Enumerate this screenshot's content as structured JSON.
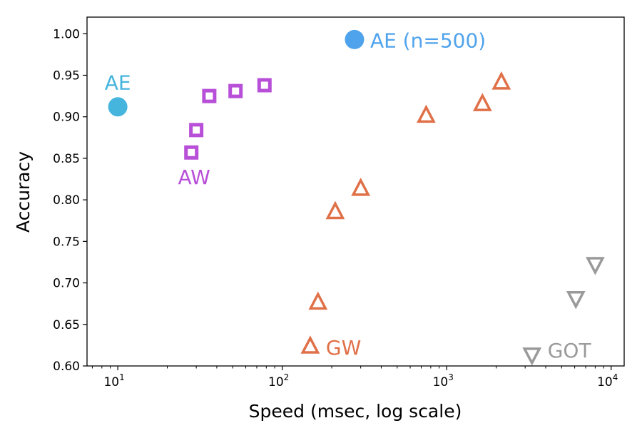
{
  "chart_data": {
    "type": "scatter",
    "title": "",
    "xlabel": "Speed (msec, log scale)",
    "ylabel": "Accuracy",
    "xscale": "log",
    "xlim": [
      6.5,
      12000
    ],
    "ylim": [
      0.6,
      1.02
    ],
    "xticks": [
      {
        "value": 10,
        "base": "10",
        "exp": "1"
      },
      {
        "value": 100,
        "base": "10",
        "exp": "2"
      },
      {
        "value": 1000,
        "base": "10",
        "exp": "3"
      },
      {
        "value": 10000,
        "base": "10",
        "exp": "4"
      }
    ],
    "yticks": [
      "0.60",
      "0.65",
      "0.70",
      "0.75",
      "0.80",
      "0.85",
      "0.90",
      "0.95",
      "1.00"
    ],
    "grid": false,
    "legend": "none",
    "series": [
      {
        "name": "AE",
        "label": "AE",
        "marker": "circle",
        "color": "#45b5dd",
        "points": [
          {
            "x": 10.0,
            "y": 0.912
          }
        ]
      },
      {
        "name": "AE (n=500)",
        "label": "AE (n=500)",
        "marker": "circle",
        "color": "#4fa3ec",
        "points": [
          {
            "x": 275,
            "y": 0.993
          }
        ]
      },
      {
        "name": "AW",
        "label": "AW",
        "marker": "square",
        "color": "#b84fd8",
        "points": [
          {
            "x": 28,
            "y": 0.857
          },
          {
            "x": 30,
            "y": 0.884
          },
          {
            "x": 36,
            "y": 0.925
          },
          {
            "x": 52,
            "y": 0.931
          },
          {
            "x": 78,
            "y": 0.938
          }
        ]
      },
      {
        "name": "GW",
        "label": "GW",
        "marker": "triangle-up",
        "color": "#e07048",
        "points": [
          {
            "x": 148,
            "y": 0.624
          },
          {
            "x": 165,
            "y": 0.677
          },
          {
            "x": 210,
            "y": 0.786
          },
          {
            "x": 300,
            "y": 0.814
          },
          {
            "x": 750,
            "y": 0.902
          },
          {
            "x": 1650,
            "y": 0.916
          },
          {
            "x": 2150,
            "y": 0.942
          }
        ]
      },
      {
        "name": "GOT",
        "label": "GOT",
        "marker": "triangle-down",
        "color": "#9a9a9a",
        "points": [
          {
            "x": 3300,
            "y": 0.613
          },
          {
            "x": 6100,
            "y": 0.681
          },
          {
            "x": 8000,
            "y": 0.722
          }
        ]
      }
    ]
  }
}
